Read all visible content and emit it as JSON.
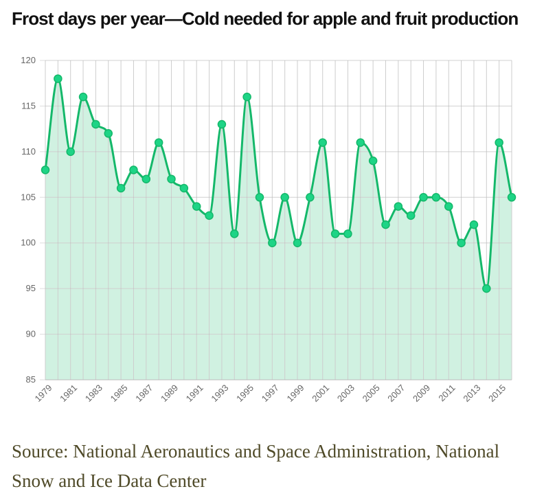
{
  "title": "Frost days per year—Cold needed for apple and fruit production",
  "source": "Source: National Aeronautics and Space Administration, National Snow and Ice Data Center",
  "colors": {
    "line": "#14b86a",
    "point": "#1ed486",
    "area": "#cdf0df",
    "grid": "#dddddd"
  },
  "chart_data": {
    "type": "area",
    "x": [
      1979,
      1980,
      1981,
      1982,
      1983,
      1984,
      1985,
      1986,
      1987,
      1988,
      1989,
      1990,
      1991,
      1992,
      1993,
      1994,
      1995,
      1996,
      1997,
      1998,
      1999,
      2000,
      2001,
      2002,
      2003,
      2004,
      2005,
      2006,
      2007,
      2008,
      2009,
      2010,
      2011,
      2012,
      2013,
      2014,
      2015,
      2016
    ],
    "values": [
      108,
      118,
      110,
      116,
      113,
      112,
      106,
      108,
      107,
      111,
      107,
      106,
      104,
      103,
      113,
      101,
      116,
      105,
      100,
      105,
      100,
      105,
      111,
      101,
      101,
      111,
      109,
      102,
      104,
      103,
      105,
      105,
      104,
      100,
      102,
      95,
      111,
      105
    ],
    "x_tick_labels": [
      "1979",
      "1981",
      "1983",
      "1985",
      "1987",
      "1989",
      "1991",
      "1993",
      "1995",
      "1997",
      "1999",
      "2001",
      "2003",
      "2005",
      "2007",
      "2009",
      "2011",
      "2013",
      "2015"
    ],
    "y_tick_labels": [
      "85",
      "90",
      "95",
      "100",
      "105",
      "110",
      "115",
      "120"
    ],
    "ylim": [
      85,
      120
    ],
    "grid": true,
    "legend": "none"
  }
}
